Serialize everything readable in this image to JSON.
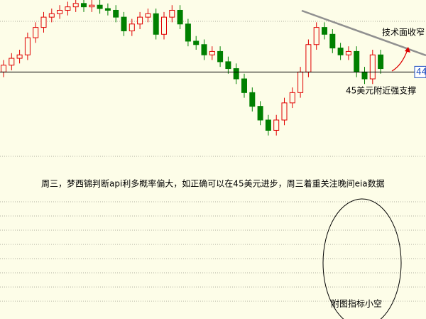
{
  "chart_data": {
    "type": "candlestick",
    "open": [
      44.0,
      44.4,
      44.8,
      45.0,
      46.0,
      46.6,
      47.2,
      47.4,
      47.6,
      47.8,
      48.0,
      47.8,
      47.9,
      47.7,
      47.6,
      47.2,
      46.4,
      46.8,
      47.2,
      47.4,
      46.2,
      47.2,
      47.6,
      46.8,
      45.8,
      45.6,
      45.0,
      45.2,
      44.6,
      44.2,
      43.6,
      42.8,
      42.0,
      41.2,
      40.6,
      41.2,
      42.2,
      42.8,
      44.0,
      45.6,
      46.6,
      46.2,
      45.4,
      45.0,
      45.2,
      44.0,
      43.6,
      45.0
    ],
    "high": [
      44.7,
      45.1,
      45.3,
      46.3,
      46.9,
      47.5,
      47.7,
      47.9,
      48.1,
      48.3,
      48.3,
      48.2,
      48.2,
      48.0,
      47.9,
      47.5,
      47.1,
      47.5,
      47.7,
      47.7,
      47.5,
      47.9,
      47.9,
      47.1,
      46.1,
      45.9,
      45.5,
      45.5,
      44.9,
      44.5,
      43.9,
      43.1,
      42.3,
      41.5,
      41.5,
      42.5,
      43.1,
      44.3,
      45.9,
      46.9,
      46.9,
      46.5,
      45.7,
      45.5,
      45.5,
      44.3,
      45.3,
      45.3
    ],
    "low": [
      43.7,
      44.1,
      44.5,
      44.7,
      45.7,
      46.3,
      46.9,
      47.1,
      47.3,
      47.5,
      47.5,
      47.5,
      47.4,
      47.3,
      46.9,
      46.1,
      46.1,
      46.5,
      46.9,
      45.9,
      45.9,
      46.9,
      46.5,
      45.5,
      45.3,
      44.7,
      44.7,
      44.3,
      43.9,
      43.3,
      42.5,
      41.7,
      40.9,
      40.3,
      40.3,
      40.9,
      41.9,
      42.5,
      43.7,
      45.3,
      45.9,
      45.1,
      44.7,
      44.7,
      43.7,
      43.3,
      43.3,
      43.9
    ],
    "close": [
      44.4,
      44.8,
      45.0,
      46.0,
      46.6,
      47.2,
      47.4,
      47.6,
      47.8,
      48.0,
      47.8,
      47.9,
      47.7,
      47.6,
      47.2,
      46.4,
      46.8,
      47.2,
      47.4,
      46.2,
      47.2,
      47.6,
      46.8,
      45.8,
      45.6,
      45.0,
      45.2,
      44.6,
      44.2,
      43.6,
      42.8,
      42.0,
      41.2,
      40.6,
      41.2,
      42.2,
      42.8,
      44.0,
      45.6,
      46.6,
      46.2,
      45.4,
      45.0,
      45.2,
      44.0,
      43.6,
      45.0,
      44.2
    ],
    "up_color": "#e00000",
    "down_color": "#008000",
    "ylim": [
      39.5,
      48.2
    ],
    "price_marker": {
      "value": 44,
      "label": "44"
    },
    "annotations": [
      "技术面收窄",
      "45美元附近强支撑",
      "周三，梦西锦判断api利多概率偏大，如正确可以在45美元进步，周三着重关注晚间eia数据",
      "附图指标小空"
    ]
  }
}
